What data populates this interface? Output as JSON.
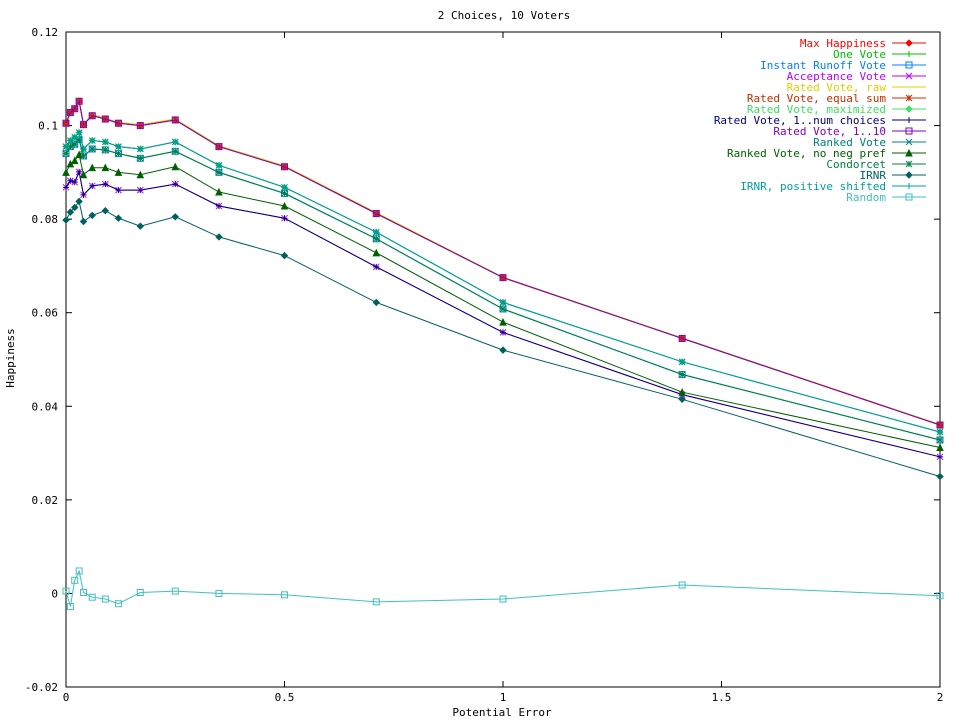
{
  "chart_data": {
    "type": "line",
    "title": "2 Choices, 10 Voters",
    "xlabel": "Potential Error",
    "ylabel": "Happiness",
    "xlim": [
      0,
      2
    ],
    "ylim": [
      -0.02,
      0.12
    ],
    "xticks": [
      0,
      0.5,
      1,
      1.5,
      2
    ],
    "xtick_labels": [
      "0",
      "0.5",
      "1",
      "1.5",
      "2"
    ],
    "yticks": [
      -0.02,
      0,
      0.02,
      0.04,
      0.06,
      0.08,
      0.1,
      0.12
    ],
    "ytick_labels": [
      "-0.02",
      "0",
      "0.02",
      "0.04",
      "0.06",
      "0.08",
      "0.1",
      "0.12"
    ],
    "grid": false,
    "legend_position": "top-right",
    "x": [
      0,
      0.01,
      0.02,
      0.03,
      0.04,
      0.06,
      0.09,
      0.12,
      0.17,
      0.25,
      0.35,
      0.5,
      0.71,
      1.0,
      1.41,
      2.0
    ],
    "series": [
      {
        "name": "Max Happiness",
        "color": "#ff0000",
        "marker": "diamond",
        "values": [
          0.1005,
          0.1028,
          0.1036,
          0.1052,
          0.1002,
          0.1021,
          0.1014,
          0.1005,
          0.1,
          0.1012,
          0.0955,
          0.0912,
          0.0812,
          0.0675,
          0.0545,
          0.036
        ]
      },
      {
        "name": "One Vote",
        "color": "#00c000",
        "marker": "plus",
        "values": [
          0.094,
          0.0955,
          0.096,
          0.097,
          0.0935,
          0.095,
          0.0948,
          0.094,
          0.093,
          0.0945,
          0.09,
          0.0855,
          0.0758,
          0.0608,
          0.0468,
          0.0328
        ]
      },
      {
        "name": "Instant Runoff Vote",
        "color": "#0080ff",
        "marker": "square",
        "values": [
          0.094,
          0.0955,
          0.096,
          0.097,
          0.0935,
          0.095,
          0.0948,
          0.094,
          0.093,
          0.0945,
          0.09,
          0.0855,
          0.0758,
          0.0608,
          0.0468,
          0.0328
        ]
      },
      {
        "name": "Acceptance Vote",
        "color": "#c000ff",
        "marker": "x",
        "values": [
          0.0868,
          0.0882,
          0.0879,
          0.0901,
          0.0852,
          0.0871,
          0.0875,
          0.0862,
          0.0862,
          0.0875,
          0.0828,
          0.0802,
          0.0698,
          0.0558,
          0.0425,
          0.0292
        ]
      },
      {
        "name": "Rated Vote, raw",
        "color": "#e0d000",
        "marker": "none",
        "values": [
          0.1008,
          0.103,
          0.1038,
          0.1056,
          0.1004,
          0.1024,
          0.1016,
          0.1007,
          0.1002,
          0.1014,
          0.0957,
          0.0914,
          0.0814,
          0.0676,
          0.0546,
          0.0361
        ]
      },
      {
        "name": "Rated Vote, equal sum",
        "color": "#c03000",
        "marker": "star",
        "values": [
          0.1005,
          0.1028,
          0.1036,
          0.1052,
          0.1002,
          0.1021,
          0.1014,
          0.1005,
          0.1,
          0.1012,
          0.0955,
          0.0912,
          0.0812,
          0.0675,
          0.0545,
          0.036
        ]
      },
      {
        "name": "Rated Vote, maximized",
        "color": "#40e060",
        "marker": "diamond",
        "values": [
          0.0955,
          0.0968,
          0.0975,
          0.0985,
          0.095,
          0.0968,
          0.0965,
          0.0955,
          0.095,
          0.0965,
          0.0915,
          0.0868,
          0.0772,
          0.0622,
          0.0495,
          0.0345
        ]
      },
      {
        "name": "Rated Vote, 1..num choices",
        "color": "#000080",
        "marker": "plus",
        "values": [
          0.0868,
          0.0882,
          0.0879,
          0.0901,
          0.0852,
          0.0871,
          0.0875,
          0.0862,
          0.0862,
          0.0875,
          0.0828,
          0.0802,
          0.0698,
          0.0558,
          0.0425,
          0.0292
        ]
      },
      {
        "name": "Rated Vote, 1..10",
        "color": "#8000c0",
        "marker": "square",
        "values": [
          0.1005,
          0.1028,
          0.1036,
          0.1052,
          0.1002,
          0.1021,
          0.1014,
          0.1005,
          0.1,
          0.1012,
          0.0955,
          0.0912,
          0.0812,
          0.0675,
          0.0545,
          0.036
        ]
      },
      {
        "name": "Ranked Vote",
        "color": "#008080",
        "marker": "x",
        "values": [
          0.0955,
          0.0968,
          0.0975,
          0.0985,
          0.095,
          0.0968,
          0.0965,
          0.0955,
          0.095,
          0.0965,
          0.0915,
          0.0868,
          0.0772,
          0.0622,
          0.0495,
          0.0345
        ]
      },
      {
        "name": "Ranked Vote, no neg pref",
        "color": "#006000",
        "marker": "triangle",
        "values": [
          0.09,
          0.0918,
          0.0925,
          0.0938,
          0.0895,
          0.091,
          0.091,
          0.09,
          0.0895,
          0.0912,
          0.0858,
          0.0828,
          0.0728,
          0.058,
          0.043,
          0.0312
        ]
      },
      {
        "name": "Condorcet",
        "color": "#008040",
        "marker": "star",
        "values": [
          0.094,
          0.0955,
          0.096,
          0.097,
          0.0935,
          0.095,
          0.0948,
          0.094,
          0.093,
          0.0945,
          0.09,
          0.0855,
          0.0758,
          0.0608,
          0.0468,
          0.0328
        ]
      },
      {
        "name": "IRNR",
        "color": "#006060",
        "marker": "diamond",
        "values": [
          0.0798,
          0.0815,
          0.0825,
          0.0838,
          0.0795,
          0.0808,
          0.0818,
          0.0802,
          0.0785,
          0.0805,
          0.0762,
          0.0722,
          0.0622,
          0.052,
          0.0415,
          0.025
        ]
      },
      {
        "name": "IRNR, positive shifted",
        "color": "#00a0a0",
        "marker": "plus",
        "values": [
          0.0955,
          0.0968,
          0.0975,
          0.0985,
          0.095,
          0.0968,
          0.0965,
          0.0955,
          0.095,
          0.0965,
          0.0915,
          0.0868,
          0.0772,
          0.0622,
          0.0495,
          0.0345
        ]
      },
      {
        "name": "Random",
        "color": "#40c0c0",
        "marker": "square",
        "values": [
          0.0005,
          -0.0028,
          0.0028,
          0.0048,
          0.0002,
          -0.0008,
          -0.0012,
          -0.0022,
          0.0002,
          0.0005,
          0.0,
          -0.0003,
          -0.0018,
          -0.0012,
          0.0018,
          -0.0005
        ]
      }
    ]
  }
}
